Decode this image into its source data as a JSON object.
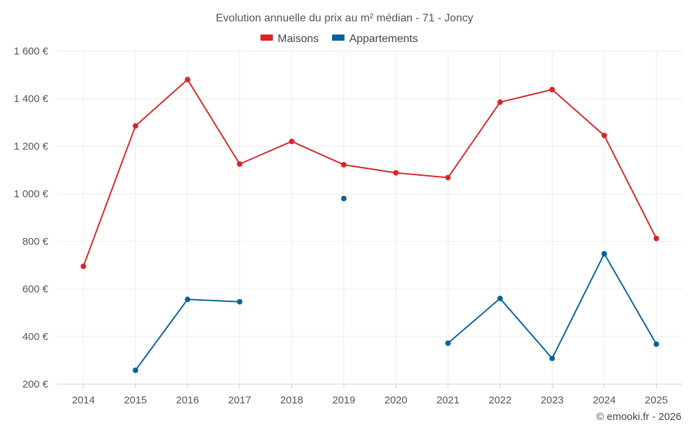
{
  "chart_data": {
    "type": "line",
    "title": "Evolution annuelle du prix au m² médian - 71 - Joncy",
    "x": [
      "2014",
      "2015",
      "2016",
      "2017",
      "2018",
      "2019",
      "2020",
      "2021",
      "2022",
      "2023",
      "2024",
      "2025"
    ],
    "ylim": [
      200,
      1600
    ],
    "yticks": [
      200,
      400,
      600,
      800,
      1000,
      1200,
      1400,
      1600
    ],
    "ytick_labels": [
      "200 €",
      "400 €",
      "600 €",
      "800 €",
      "1 000 €",
      "1 200 €",
      "1 400 €",
      "1 600 €"
    ],
    "grid": true,
    "legend_position": "top-center",
    "series": [
      {
        "name": "Maisons",
        "color": "#d62728",
        "values": [
          695,
          1285,
          1480,
          1125,
          1220,
          1122,
          1088,
          1068,
          1385,
          1438,
          1245,
          812
        ]
      },
      {
        "name": "Appartements",
        "color": "#08629a",
        "values": [
          null,
          258,
          556,
          546,
          null,
          980,
          null,
          372,
          560,
          308,
          748,
          368
        ]
      }
    ],
    "credit": "© emooki.fr - 2026"
  }
}
